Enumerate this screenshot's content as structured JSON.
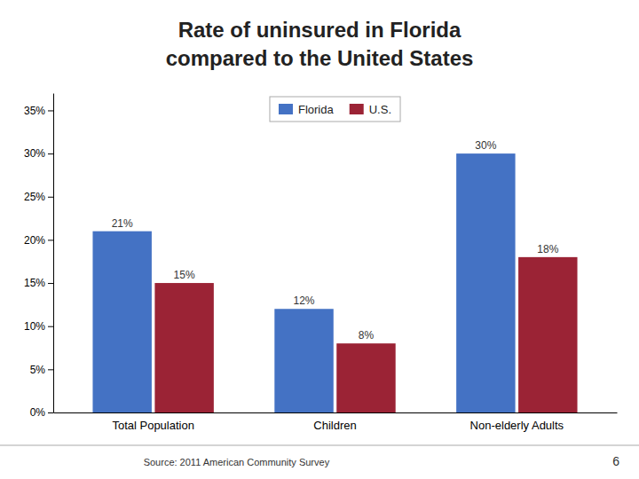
{
  "chart_data": {
    "type": "bar",
    "title": "Rate of uninsured in Florida",
    "subtitle": "compared to the United States",
    "categories": [
      "Total Population",
      "Children",
      "Non-elderly Adults"
    ],
    "series": [
      {
        "name": "Florida",
        "color": "#4472C4",
        "values": [
          21,
          12,
          30
        ],
        "value_labels": [
          "21%",
          "12%",
          "30%"
        ]
      },
      {
        "name": "U.S.",
        "color": "#9B2335",
        "values": [
          15,
          8,
          18
        ],
        "value_labels": [
          "15%",
          "8%",
          "18%"
        ]
      }
    ],
    "ylim": [
      0,
      37
    ],
    "yticks": [
      {
        "value": 0,
        "label": "0%"
      },
      {
        "value": 5,
        "label": "5%"
      },
      {
        "value": 10,
        "label": "10%"
      },
      {
        "value": 15,
        "label": "15%"
      },
      {
        "value": 20,
        "label": "20%"
      },
      {
        "value": 25,
        "label": "25%"
      },
      {
        "value": 30,
        "label": "30%"
      },
      {
        "value": 35,
        "label": "35%"
      }
    ],
    "data_labels": true,
    "grid": false,
    "legend": "top",
    "annotations": [
      "Source: 2011 American Community Survey",
      "6"
    ]
  }
}
